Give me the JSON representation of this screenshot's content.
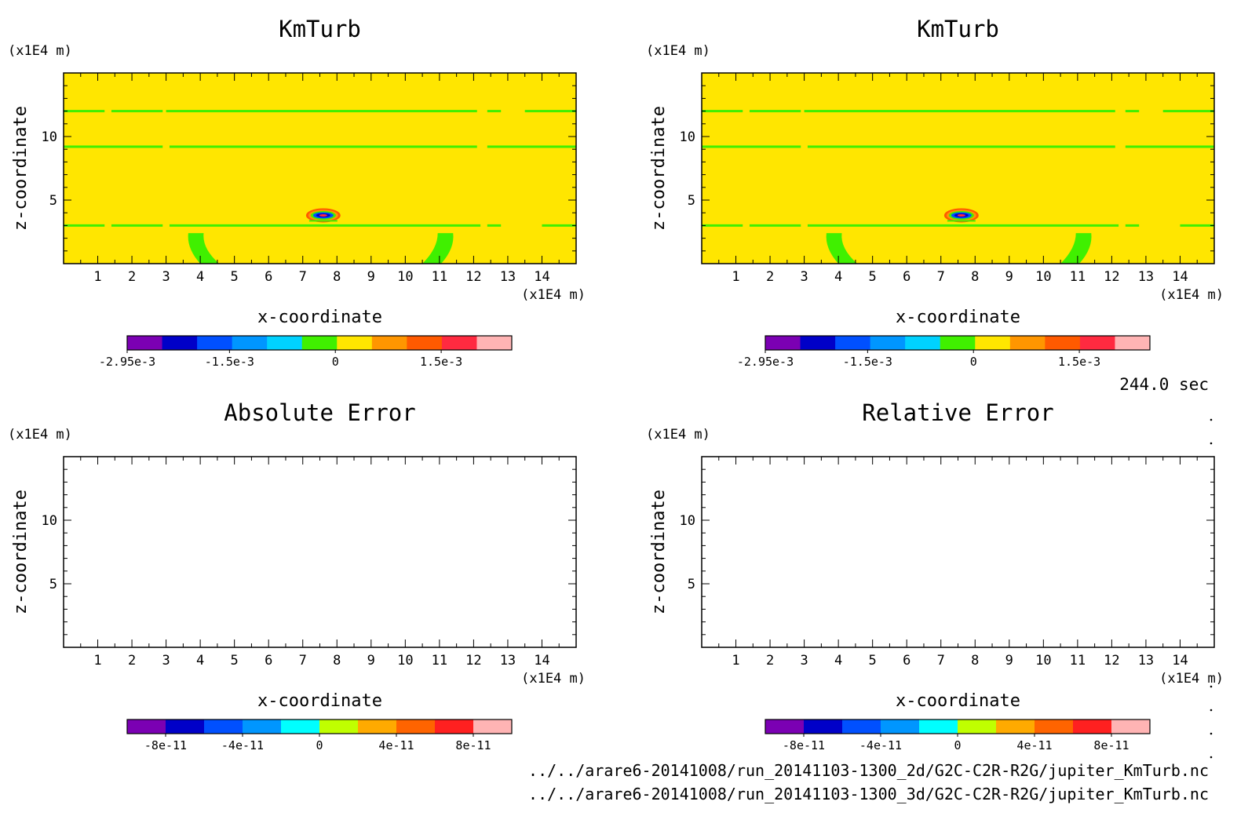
{
  "timestamp": "244.0 sec",
  "file_paths": [
    "../../arare6-20141008/run_20141103-1300_2d/G2C-C2R-R2G/jupiter_KmTurb.nc",
    "../../arare6-20141008/run_20141103-1300_3d/G2C-C2R-R2G/jupiter_KmTurb.nc"
  ],
  "chart_data": [
    {
      "type": "heatmap",
      "title": "KmTurb",
      "xlabel": "x-coordinate",
      "ylabel": "z-coordinate",
      "x_unit": "(x1E4 m)",
      "y_unit": "(x1E4 m)",
      "xlim": [
        0,
        15
      ],
      "ylim": [
        0,
        15
      ],
      "x_ticks": [
        1,
        2,
        3,
        4,
        5,
        6,
        7,
        8,
        9,
        10,
        11,
        12,
        13,
        14
      ],
      "y_ticks": [
        5,
        10
      ],
      "field": {
        "background_level": 0,
        "green_bands_z": [
          3,
          9.2,
          12
        ],
        "green_patches_x": [
          4,
          11
        ],
        "perturbation_center": [
          7.6,
          3.8
        ]
      },
      "colorbar": {
        "colors": [
          "#7b00b3",
          "#0000c8",
          "#0050ff",
          "#0096ff",
          "#00d2ff",
          "#40f000",
          "#ffe600",
          "#ff9600",
          "#ff5a00",
          "#ff2a40",
          "#ffb4b4"
        ],
        "tick_labels": [
          "-2.95e-3",
          "-1.5e-3",
          "0",
          "1.5e-3"
        ],
        "tick_values": [
          -0.00295,
          -0.0015,
          0,
          0.0015
        ],
        "range": [
          -0.00295,
          0.0025
        ]
      }
    },
    {
      "type": "heatmap",
      "title": "KmTurb",
      "xlabel": "x-coordinate",
      "ylabel": "z-coordinate",
      "x_unit": "(x1E4 m)",
      "y_unit": "(x1E4 m)",
      "xlim": [
        0,
        15
      ],
      "ylim": [
        0,
        15
      ],
      "x_ticks": [
        1,
        2,
        3,
        4,
        5,
        6,
        7,
        8,
        9,
        10,
        11,
        12,
        13,
        14
      ],
      "y_ticks": [
        5,
        10
      ],
      "field": {
        "background_level": 0,
        "green_bands_z": [
          3,
          9.2,
          12
        ],
        "green_patches_x": [
          4,
          11
        ],
        "perturbation_center": [
          7.6,
          3.8
        ]
      },
      "colorbar": {
        "colors": [
          "#7b00b3",
          "#0000c8",
          "#0050ff",
          "#0096ff",
          "#00d2ff",
          "#40f000",
          "#ffe600",
          "#ff9600",
          "#ff5a00",
          "#ff2a40",
          "#ffb4b4"
        ],
        "tick_labels": [
          "-2.95e-3",
          "-1.5e-3",
          "0",
          "1.5e-3"
        ],
        "tick_values": [
          -0.00295,
          -0.0015,
          0,
          0.0015
        ],
        "range": [
          -0.00295,
          0.0025
        ]
      }
    },
    {
      "type": "heatmap",
      "title": "Absolute Error",
      "xlabel": "x-coordinate",
      "ylabel": "z-coordinate",
      "x_unit": "(x1E4 m)",
      "y_unit": "(x1E4 m)",
      "xlim": [
        0,
        15
      ],
      "ylim": [
        0,
        15
      ],
      "x_ticks": [
        1,
        2,
        3,
        4,
        5,
        6,
        7,
        8,
        9,
        10,
        11,
        12,
        13,
        14
      ],
      "y_ticks": [
        5,
        10
      ],
      "field": null,
      "colorbar": {
        "colors": [
          "#7b00b3",
          "#0000c8",
          "#0050ff",
          "#0096ff",
          "#00ffff",
          "#c0ff00",
          "#ffaa00",
          "#ff6400",
          "#ff2020",
          "#ffb4b4"
        ],
        "tick_labels": [
          "-8e-11",
          "-4e-11",
          "0",
          "4e-11",
          "8e-11"
        ],
        "tick_values": [
          -8e-11,
          -4e-11,
          0,
          4e-11,
          8e-11
        ],
        "range": [
          -1e-10,
          1e-10
        ]
      }
    },
    {
      "type": "heatmap",
      "title": "Relative Error",
      "xlabel": "x-coordinate",
      "ylabel": "z-coordinate",
      "x_unit": "(x1E4 m)",
      "y_unit": "(x1E4 m)",
      "xlim": [
        0,
        15
      ],
      "ylim": [
        0,
        15
      ],
      "x_ticks": [
        1,
        2,
        3,
        4,
        5,
        6,
        7,
        8,
        9,
        10,
        11,
        12,
        13,
        14
      ],
      "y_ticks": [
        5,
        10
      ],
      "field": null,
      "colorbar": {
        "colors": [
          "#7b00b3",
          "#0000c8",
          "#0050ff",
          "#0096ff",
          "#00ffff",
          "#c0ff00",
          "#ffaa00",
          "#ff6400",
          "#ff2020",
          "#ffb4b4"
        ],
        "tick_labels": [
          "-8e-11",
          "-4e-11",
          "0",
          "4e-11",
          "8e-11"
        ],
        "tick_values": [
          -8e-11,
          -4e-11,
          0,
          4e-11,
          8e-11
        ],
        "range": [
          -1e-10,
          1e-10
        ]
      }
    }
  ]
}
